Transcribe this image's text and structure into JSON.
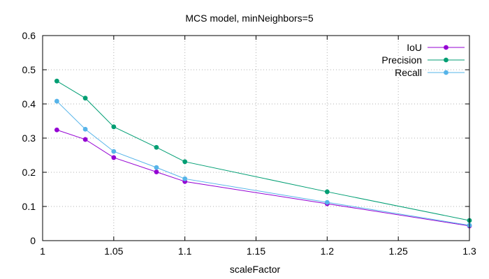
{
  "chart_data": {
    "type": "line",
    "title": "MCS model, minNeighbors=5",
    "xlabel": "scaleFactor",
    "ylabel": "",
    "xlim": [
      1,
      1.3
    ],
    "ylim": [
      0,
      0.6
    ],
    "xticks": [
      "1",
      "1.05",
      "1.1",
      "1.15",
      "1.2",
      "1.25",
      "1.3"
    ],
    "yticks": [
      "0",
      "0.1",
      "0.2",
      "0.3",
      "0.4",
      "0.5",
      "0.6"
    ],
    "grid": true,
    "legend_position": "top-right",
    "x": [
      1.01,
      1.03,
      1.05,
      1.08,
      1.1,
      1.2,
      1.3
    ],
    "series": [
      {
        "name": "IoU",
        "color": "#9400d3",
        "values": [
          0.324,
          0.296,
          0.243,
          0.201,
          0.173,
          0.108,
          0.043
        ]
      },
      {
        "name": "Precision",
        "color": "#009e73",
        "values": [
          0.467,
          0.417,
          0.333,
          0.273,
          0.231,
          0.143,
          0.059
        ]
      },
      {
        "name": "Recall",
        "color": "#56b4e9",
        "values": [
          0.408,
          0.326,
          0.261,
          0.214,
          0.181,
          0.112,
          0.045
        ]
      }
    ]
  }
}
